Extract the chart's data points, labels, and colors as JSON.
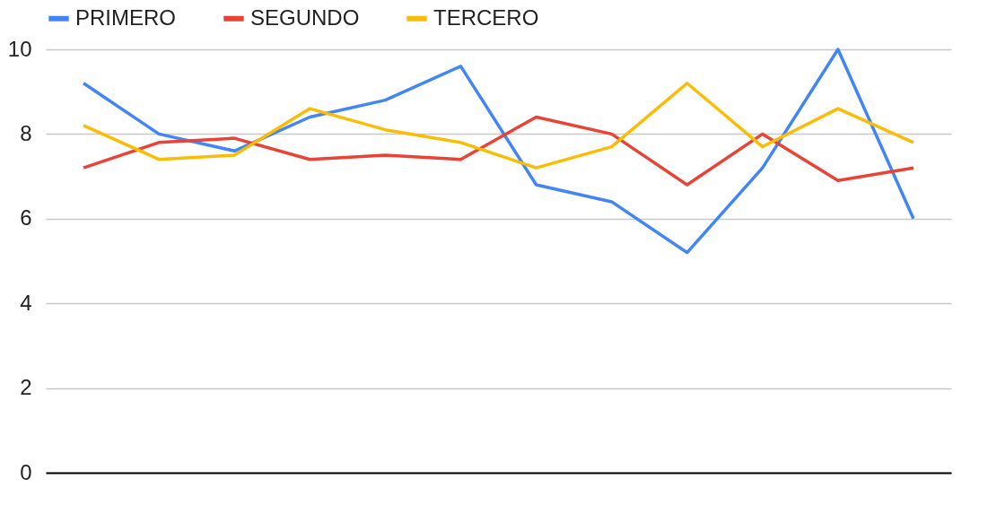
{
  "chart_data": {
    "type": "line",
    "categories": [
      null,
      null,
      null,
      null,
      null,
      null,
      null,
      null,
      null,
      null,
      null,
      null
    ],
    "series": [
      {
        "name": "PRIMERO",
        "color": "#4285f4",
        "values": [
          9.2,
          8.0,
          7.6,
          8.4,
          8.8,
          9.6,
          6.8,
          6.4,
          5.2,
          7.2,
          10.0,
          6.0
        ]
      },
      {
        "name": "SEGUNDO",
        "color": "#ea4335",
        "values": [
          7.2,
          7.8,
          7.9,
          7.4,
          7.5,
          7.4,
          8.4,
          8.0,
          6.8,
          8.0,
          6.9,
          7.2
        ]
      },
      {
        "name": "TERCERO",
        "color": "#fbbc04",
        "values": [
          8.2,
          7.4,
          7.5,
          8.6,
          8.1,
          7.8,
          7.2,
          7.7,
          9.2,
          7.7,
          8.6,
          7.8
        ]
      }
    ],
    "ylim": [
      0,
      10
    ],
    "yticks": [
      0,
      2,
      4,
      6,
      8,
      10
    ],
    "grid": "y",
    "legend": "top",
    "tick_labels": "y"
  }
}
